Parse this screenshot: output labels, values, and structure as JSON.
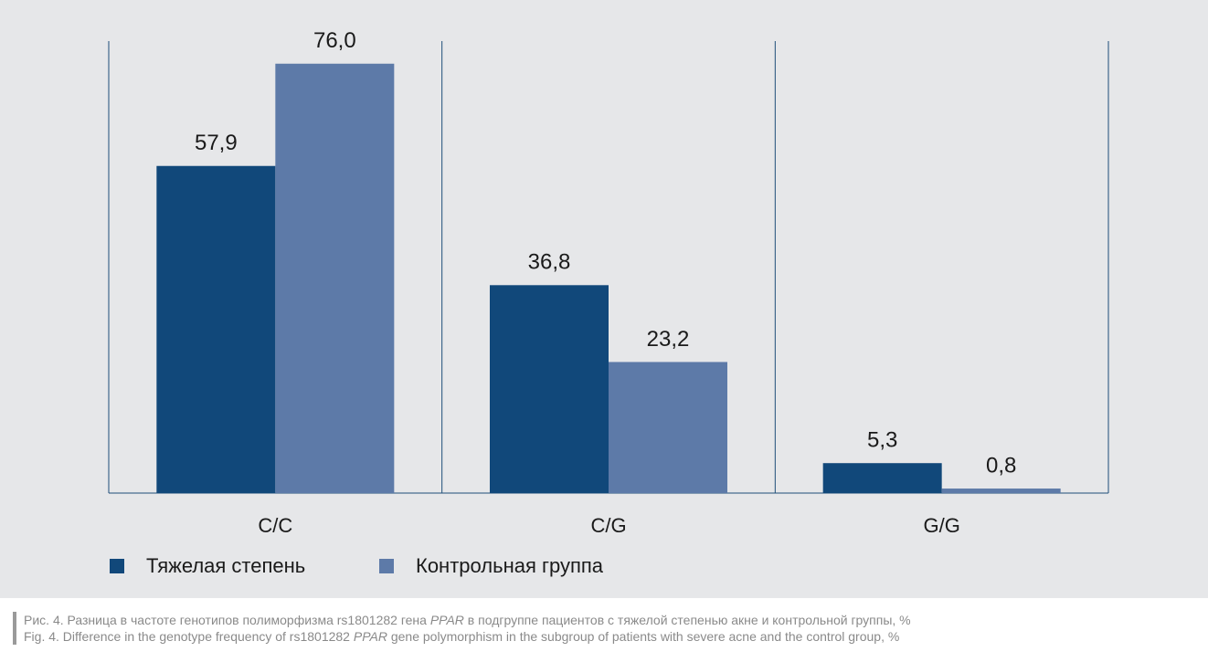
{
  "chart_data": {
    "type": "bar",
    "categories": [
      "C/C",
      "C/G",
      "G/G"
    ],
    "series": [
      {
        "name": "Тяжелая степень",
        "color": "#11487a",
        "values": [
          57.9,
          36.8,
          5.3
        ],
        "value_labels": [
          "57,9",
          "36,8",
          "5,3"
        ]
      },
      {
        "name": "Контрольная группа",
        "color": "#5d7aa8",
        "values": [
          76.0,
          23.2,
          0.8
        ],
        "value_labels": [
          "76,0",
          "23,2",
          "0,8"
        ]
      }
    ],
    "ylim": [
      0,
      80
    ]
  },
  "caption": {
    "ru": [
      "Рис. 4. Разница в частоте генотипов полиморфизма rs1801282 гена ",
      "PPAR",
      " в подгруппе пациентов с тяжелой степенью акне и контрольной группы, %"
    ],
    "en": [
      "Fig. 4. Difference in the genotype frequency of rs1801282 ",
      "PPAR",
      " gene polymorphism in the subgroup of patients with severe acne and the control group, %"
    ]
  }
}
